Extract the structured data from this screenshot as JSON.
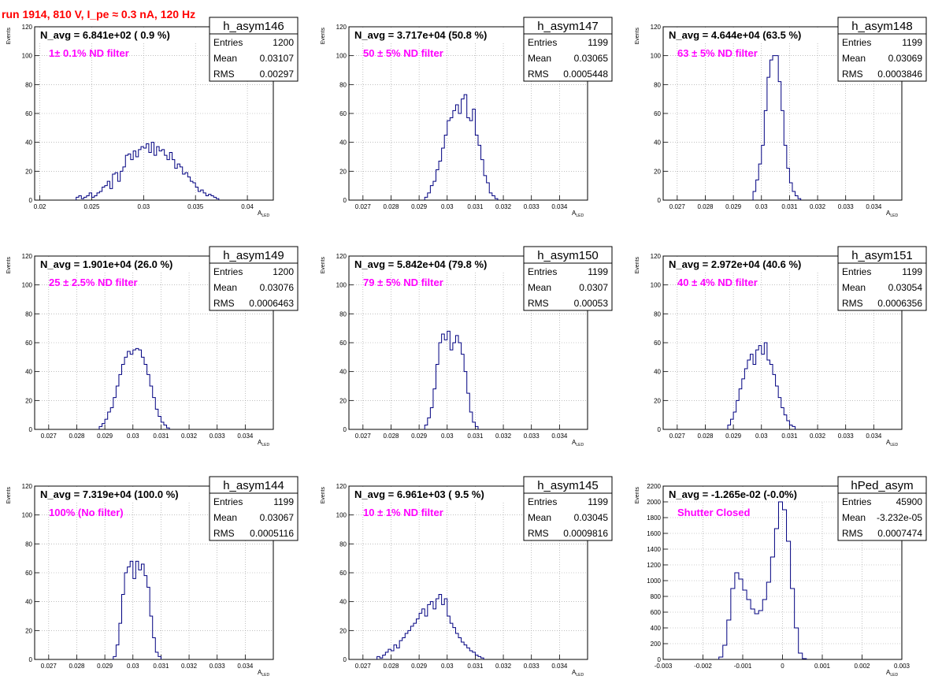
{
  "page": {
    "title": "run 1914,   810 V, I_pe ≈ 0.3 nA, 120 Hz",
    "title_color": "#ff0000",
    "annotation_color": "#ff00ff",
    "hist_color": "#000080",
    "axis_label_y": "Events",
    "axis_label_x_main": "A",
    "axis_label_x_sub": "LED"
  },
  "chart_data": [
    {
      "type": "histogram",
      "name": "h_asym146",
      "navg": "N_avg = 6.841e+02 ( 0.9 %)",
      "note": "1± 0.1% ND filter",
      "stats": [
        [
          "Entries",
          "1200"
        ],
        [
          "Mean",
          "0.03107"
        ],
        [
          "RMS",
          "0.00297"
        ]
      ],
      "xlim": [
        0.0195,
        0.0425
      ],
      "ylim": [
        0,
        120
      ],
      "xticks": [
        0.02,
        0.025,
        0.03,
        0.035,
        0.04
      ],
      "xticklabels": [
        "0.02",
        "0.025",
        "0.03",
        "0.035",
        "0.04"
      ],
      "yticks": [
        0,
        20,
        40,
        60,
        80,
        100,
        120
      ],
      "yticklabels": [
        "0",
        "20",
        "40",
        "60",
        "80",
        "100",
        "120"
      ],
      "bin_start": 0.0235,
      "bin_width": 0.00025,
      "values": [
        2,
        3,
        1,
        2,
        3,
        5,
        2,
        3,
        5,
        6,
        9,
        10,
        13,
        8,
        18,
        19,
        13,
        20,
        23,
        31,
        32,
        28,
        34,
        30,
        35,
        37,
        36,
        39,
        33,
        40,
        31,
        37,
        34,
        35,
        31,
        28,
        33,
        28,
        22,
        25,
        23,
        18,
        19,
        16,
        13,
        12,
        9,
        6,
        7,
        5,
        3,
        4,
        3,
        2,
        1
      ]
    },
    {
      "type": "histogram",
      "name": "h_asym147",
      "navg": "N_avg = 3.717e+04 (50.8 %)",
      "note": "50 ± 5% ND filter",
      "stats": [
        [
          "Entries",
          "1199"
        ],
        [
          "Mean",
          "0.03065"
        ],
        [
          "RMS",
          "0.0005448"
        ]
      ],
      "xlim": [
        0.0265,
        0.035
      ],
      "ylim": [
        0,
        120
      ],
      "xticks": [
        0.027,
        0.028,
        0.029,
        0.03,
        0.031,
        0.032,
        0.033,
        0.034
      ],
      "xticklabels": [
        "0.027",
        "0.028",
        "0.029",
        "0.03",
        "0.031",
        "0.032",
        "0.033",
        "0.034"
      ],
      "yticks": [
        0,
        20,
        40,
        60,
        80,
        100,
        120
      ],
      "yticklabels": [
        "0",
        "20",
        "40",
        "60",
        "80",
        "100",
        "120"
      ],
      "bin_start": 0.0292,
      "bin_width": 0.0001,
      "values": [
        2,
        5,
        10,
        13,
        21,
        27,
        36,
        45,
        55,
        57,
        62,
        66,
        60,
        70,
        73,
        57,
        55,
        63,
        45,
        38,
        28,
        17,
        12,
        5,
        3,
        1
      ]
    },
    {
      "type": "histogram",
      "name": "h_asym148",
      "navg": "N_avg = 4.644e+04 (63.5 %)",
      "note": "63 ± 5% ND filter",
      "stats": [
        [
          "Entries",
          "1199"
        ],
        [
          "Mean",
          "0.03069"
        ],
        [
          "RMS",
          "0.0003846"
        ]
      ],
      "xlim": [
        0.0265,
        0.035
      ],
      "ylim": [
        0,
        120
      ],
      "xticks": [
        0.027,
        0.028,
        0.029,
        0.03,
        0.031,
        0.032,
        0.033,
        0.034
      ],
      "xticklabels": [
        "0.027",
        "0.028",
        "0.029",
        "0.03",
        "0.031",
        "0.032",
        "0.033",
        "0.034"
      ],
      "yticks": [
        0,
        20,
        40,
        60,
        80,
        100,
        120
      ],
      "yticklabels": [
        "0",
        "20",
        "40",
        "60",
        "80",
        "100",
        "120"
      ],
      "bin_start": 0.0297,
      "bin_width": 0.0001,
      "values": [
        6,
        14,
        25,
        38,
        62,
        85,
        97,
        100,
        100,
        82,
        62,
        38,
        22,
        12,
        6,
        3,
        1
      ]
    },
    {
      "type": "histogram",
      "name": "h_asym149",
      "navg": "N_avg = 1.901e+04 (26.0 %)",
      "note": "25 ± 2.5% ND filter",
      "stats": [
        [
          "Entries",
          "1200"
        ],
        [
          "Mean",
          "0.03076"
        ],
        [
          "RMS",
          "0.0006463"
        ]
      ],
      "xlim": [
        0.0265,
        0.035
      ],
      "ylim": [
        0,
        120
      ],
      "xticks": [
        0.027,
        0.028,
        0.029,
        0.03,
        0.031,
        0.032,
        0.033,
        0.034
      ],
      "xticklabels": [
        "0.027",
        "0.028",
        "0.029",
        "0.03",
        "0.031",
        "0.032",
        "0.033",
        "0.034"
      ],
      "yticks": [
        0,
        20,
        40,
        60,
        80,
        100,
        120
      ],
      "yticklabels": [
        "0",
        "20",
        "40",
        "60",
        "80",
        "100",
        "120"
      ],
      "bin_start": 0.0288,
      "bin_width": 0.0001,
      "values": [
        2,
        4,
        7,
        12,
        15,
        22,
        30,
        38,
        45,
        50,
        54,
        52,
        55,
        56,
        55,
        50,
        45,
        38,
        30,
        22,
        14,
        9,
        5,
        3,
        1
      ]
    },
    {
      "type": "histogram",
      "name": "h_asym150",
      "navg": "N_avg = 5.842e+04 (79.8 %)",
      "note": "79 ± 5% ND filter",
      "stats": [
        [
          "Entries",
          "1199"
        ],
        [
          "Mean",
          "0.0307"
        ],
        [
          "RMS",
          "0.00053"
        ]
      ],
      "xlim": [
        0.0265,
        0.035
      ],
      "ylim": [
        0,
        120
      ],
      "xticks": [
        0.027,
        0.028,
        0.029,
        0.03,
        0.031,
        0.032,
        0.033,
        0.034
      ],
      "xticklabels": [
        "0.027",
        "0.028",
        "0.029",
        "0.03",
        "0.031",
        "0.032",
        "0.033",
        "0.034"
      ],
      "yticks": [
        0,
        20,
        40,
        60,
        80,
        100,
        120
      ],
      "yticklabels": [
        "0",
        "20",
        "40",
        "60",
        "80",
        "100",
        "120"
      ],
      "bin_start": 0.0292,
      "bin_width": 0.0001,
      "values": [
        3,
        8,
        15,
        28,
        45,
        60,
        66,
        62,
        68,
        55,
        60,
        65,
        60,
        52,
        40,
        25,
        12,
        5,
        2
      ]
    },
    {
      "type": "histogram",
      "name": "h_asym151",
      "navg": "N_avg = 2.972e+04 (40.6 %)",
      "note": "40 ± 4% ND filter",
      "stats": [
        [
          "Entries",
          "1199"
        ],
        [
          "Mean",
          "0.03054"
        ],
        [
          "RMS",
          "0.0006356"
        ]
      ],
      "xlim": [
        0.0265,
        0.035
      ],
      "ylim": [
        0,
        120
      ],
      "xticks": [
        0.027,
        0.028,
        0.029,
        0.03,
        0.031,
        0.032,
        0.033,
        0.034
      ],
      "xticklabels": [
        "0.027",
        "0.028",
        "0.029",
        "0.03",
        "0.031",
        "0.032",
        "0.033",
        "0.034"
      ],
      "yticks": [
        0,
        20,
        40,
        60,
        80,
        100,
        120
      ],
      "yticklabels": [
        "0",
        "20",
        "40",
        "60",
        "80",
        "100",
        "120"
      ],
      "bin_start": 0.0288,
      "bin_width": 0.0001,
      "values": [
        3,
        7,
        12,
        20,
        28,
        35,
        42,
        48,
        52,
        45,
        55,
        58,
        52,
        60,
        48,
        45,
        38,
        30,
        22,
        15,
        10,
        6,
        3,
        2
      ]
    },
    {
      "type": "histogram",
      "name": "h_asym144",
      "navg": "N_avg = 7.319e+04 (100.0 %)",
      "note": "100% (No filter)",
      "stats": [
        [
          "Entries",
          "1199"
        ],
        [
          "Mean",
          "0.03067"
        ],
        [
          "RMS",
          "0.0005116"
        ]
      ],
      "xlim": [
        0.0265,
        0.035
      ],
      "ylim": [
        0,
        120
      ],
      "xticks": [
        0.027,
        0.028,
        0.029,
        0.03,
        0.031,
        0.032,
        0.033,
        0.034
      ],
      "xticklabels": [
        "0.027",
        "0.028",
        "0.029",
        "0.03",
        "0.031",
        "0.032",
        "0.033",
        "0.034"
      ],
      "yticks": [
        0,
        20,
        40,
        60,
        80,
        100,
        120
      ],
      "yticklabels": [
        "0",
        "20",
        "40",
        "60",
        "80",
        "100",
        "120"
      ],
      "bin_start": 0.0293,
      "bin_width": 0.0001,
      "values": [
        2,
        10,
        25,
        45,
        60,
        64,
        68,
        56,
        68,
        62,
        66,
        58,
        50,
        30,
        15,
        5,
        2
      ]
    },
    {
      "type": "histogram",
      "name": "h_asym145",
      "navg": "N_avg = 6.961e+03 ( 9.5 %)",
      "note": "10 ± 1% ND filter",
      "stats": [
        [
          "Entries",
          "1199"
        ],
        [
          "Mean",
          "0.03045"
        ],
        [
          "RMS",
          "0.0009816"
        ]
      ],
      "xlim": [
        0.0265,
        0.035
      ],
      "ylim": [
        0,
        120
      ],
      "xticks": [
        0.027,
        0.028,
        0.029,
        0.03,
        0.031,
        0.032,
        0.033,
        0.034
      ],
      "xticklabels": [
        "0.027",
        "0.028",
        "0.029",
        "0.03",
        "0.031",
        "0.032",
        "0.033",
        "0.034"
      ],
      "yticks": [
        0,
        20,
        40,
        60,
        80,
        100,
        120
      ],
      "yticklabels": [
        "0",
        "20",
        "40",
        "60",
        "80",
        "100",
        "120"
      ],
      "bin_start": 0.0275,
      "bin_width": 0.0001,
      "values": [
        2,
        1,
        3,
        5,
        7,
        6,
        10,
        8,
        13,
        15,
        18,
        20,
        23,
        25,
        28,
        32,
        35,
        30,
        38,
        40,
        35,
        42,
        45,
        38,
        42,
        30,
        25,
        22,
        18,
        15,
        12,
        10,
        8,
        6,
        5,
        3,
        2,
        1
      ]
    },
    {
      "type": "histogram",
      "name": "hPed_asym",
      "navg": "N_avg = -1.265e-02 (-0.0%)",
      "note": "Shutter Closed",
      "stats": [
        [
          "Entries",
          "45900"
        ],
        [
          "Mean",
          "-3.232e-05"
        ],
        [
          "RMS",
          "0.0007474"
        ]
      ],
      "xlim": [
        -0.003,
        0.003
      ],
      "ylim": [
        0,
        2200
      ],
      "xticks": [
        -0.003,
        -0.002,
        -0.001,
        0,
        0.001,
        0.002,
        0.003
      ],
      "xticklabels": [
        "-0.003",
        "-0.002",
        "-0.001",
        "0",
        "0.001",
        "0.002",
        "0.003"
      ],
      "yticks": [
        0,
        200,
        400,
        600,
        800,
        1000,
        1200,
        1400,
        1600,
        1800,
        2000,
        2200
      ],
      "yticklabels": [
        "0",
        "200",
        "400",
        "600",
        "800",
        "1000",
        "1200",
        "1400",
        "1600",
        "1800",
        "2000",
        "2200"
      ],
      "bin_start": -0.0016,
      "bin_width": 0.0001,
      "values": [
        30,
        180,
        500,
        900,
        1100,
        1020,
        880,
        760,
        640,
        580,
        620,
        760,
        980,
        1300,
        1660,
        2000,
        1900,
        1500,
        900,
        400,
        80,
        10
      ]
    }
  ]
}
